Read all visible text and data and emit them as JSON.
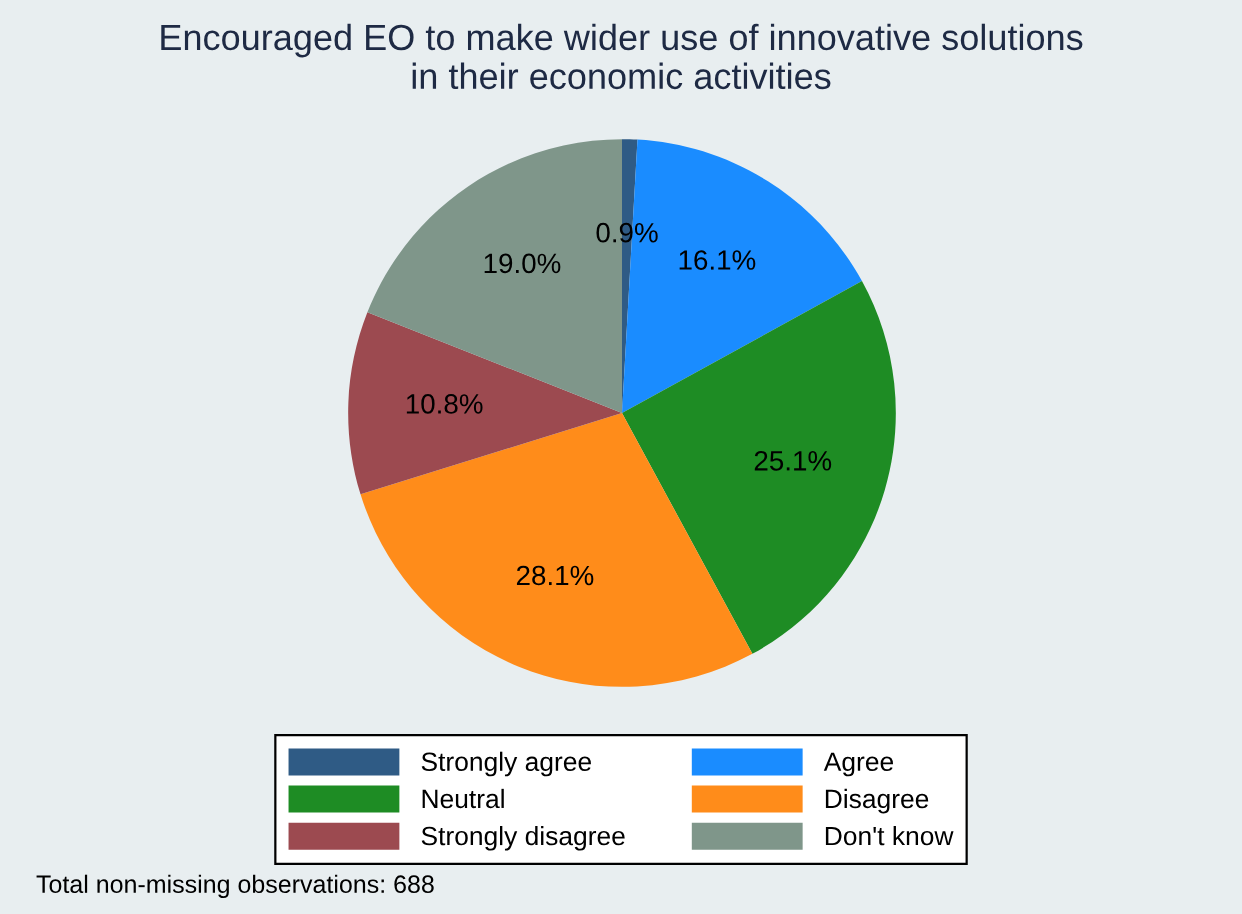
{
  "chart_data": {
    "type": "pie",
    "title": "Encouraged EO to make wider use of innovative solutions\nin their economic activities",
    "categories": [
      "Strongly agree",
      "Agree",
      "Neutral",
      "Disagree",
      "Strongly disagree",
      "Don't know"
    ],
    "values": [
      0.9,
      16.1,
      25.1,
      28.1,
      10.8,
      19.0
    ],
    "value_labels": [
      "0.9%",
      "16.1%",
      "25.1%",
      "28.1%",
      "10.8%",
      "19.0%"
    ],
    "colors": [
      "#2f5b85",
      "#1a8cff",
      "#1e8c24",
      "#ff8c1a",
      "#9c4a50",
      "#7f968a"
    ],
    "legend": "bottom",
    "annotations": [
      "Total non-missing observations: 688"
    ]
  }
}
